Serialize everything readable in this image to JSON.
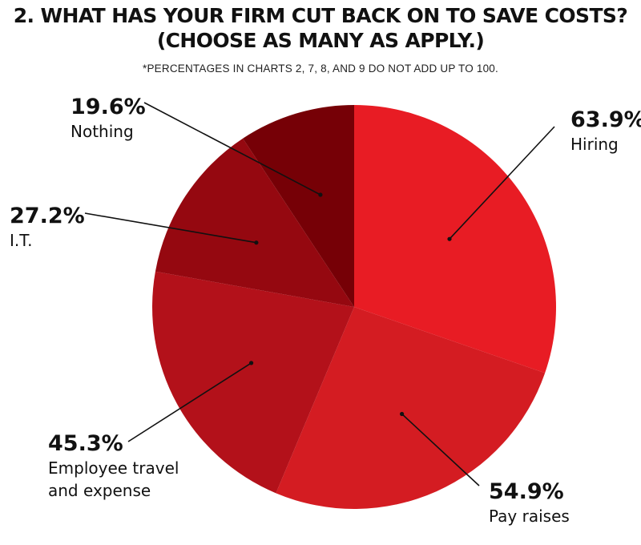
{
  "title_line1": "2. WHAT HAS YOUR FIRM CUT BACK ON TO SAVE COSTS?",
  "title_line2": "(CHOOSE AS MANY AS APPLY.)",
  "footnote": "*PERCENTAGES IN CHARTS 2, 7, 8, AND 9 DO NOT ADD UP TO 100.",
  "chart_data": {
    "type": "pie",
    "title": "2. WHAT HAS YOUR FIRM CUT BACK ON TO SAVE COSTS? (CHOOSE AS MANY AS APPLY.)",
    "legend": "none",
    "slices": [
      {
        "label": "Hiring",
        "value": 63.9,
        "value_label": "63.9%",
        "color": "#e81c24"
      },
      {
        "label": "Pay raises",
        "value": 54.9,
        "value_label": "54.9%",
        "color": "#d41c22"
      },
      {
        "label": "Employee travel and expense",
        "label_lines": [
          "Employee travel",
          "and expense"
        ],
        "value": 45.3,
        "value_label": "45.3%",
        "color": "#b3111a"
      },
      {
        "label": "I.T.",
        "value": 27.2,
        "value_label": "27.2%",
        "color": "#950810"
      },
      {
        "label": "Nothing",
        "value": 19.6,
        "value_label": "19.6%",
        "color": "#760006"
      }
    ]
  }
}
